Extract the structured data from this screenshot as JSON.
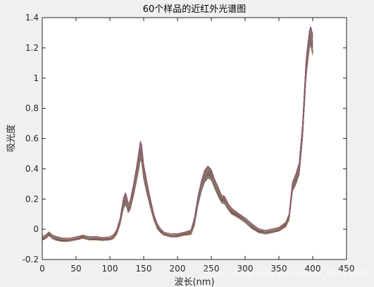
{
  "chart_data": {
    "type": "line",
    "title": "60个样品的近红外光谱图",
    "xlabel": "波长(nm)",
    "ylabel": "吸光度",
    "xlim": [
      0,
      450
    ],
    "ylim": [
      -0.2,
      1.4
    ],
    "xticks": [
      "0",
      "50",
      "100",
      "150",
      "200",
      "250",
      "300",
      "350",
      "400",
      "450"
    ],
    "yticks": [
      "-0.2",
      "0",
      "0.2",
      "0.4",
      "0.6",
      "0.8",
      "1",
      "1.2",
      "1.4"
    ],
    "grid": false,
    "series_count": 60,
    "x": [
      0,
      5,
      10,
      15,
      20,
      30,
      40,
      50,
      55,
      60,
      65,
      70,
      80,
      90,
      100,
      105,
      110,
      115,
      120,
      123,
      125,
      127,
      130,
      135,
      140,
      143,
      145,
      147,
      150,
      155,
      160,
      165,
      170,
      175,
      180,
      190,
      200,
      210,
      220,
      225,
      230,
      235,
      240,
      245,
      250,
      255,
      260,
      265,
      270,
      275,
      280,
      290,
      300,
      310,
      320,
      330,
      340,
      350,
      360,
      365,
      370,
      375,
      380,
      385,
      390,
      393,
      395,
      397,
      400
    ],
    "mean_spectrum": [
      -0.06,
      -0.05,
      -0.03,
      -0.05,
      -0.06,
      -0.07,
      -0.07,
      -0.06,
      -0.055,
      -0.05,
      -0.055,
      -0.06,
      -0.06,
      -0.065,
      -0.06,
      -0.05,
      -0.02,
      0.05,
      0.17,
      0.2,
      0.18,
      0.14,
      0.16,
      0.26,
      0.38,
      0.46,
      0.52,
      0.5,
      0.38,
      0.27,
      0.17,
      0.08,
      0.02,
      -0.01,
      -0.03,
      -0.04,
      -0.04,
      -0.03,
      -0.02,
      0.05,
      0.18,
      0.28,
      0.35,
      0.38,
      0.36,
      0.3,
      0.25,
      0.2,
      0.19,
      0.15,
      0.12,
      0.09,
      0.06,
      0.02,
      -0.01,
      -0.02,
      -0.01,
      0.0,
      0.03,
      0.08,
      0.28,
      0.33,
      0.4,
      0.65,
      1.05,
      1.18,
      1.25,
      1.28,
      1.22
    ],
    "spread": [
      0.012,
      0.012,
      0.012,
      0.012,
      0.012,
      0.01,
      0.01,
      0.01,
      0.01,
      0.01,
      0.01,
      0.01,
      0.01,
      0.01,
      0.01,
      0.012,
      0.015,
      0.02,
      0.035,
      0.04,
      0.035,
      0.03,
      0.03,
      0.04,
      0.05,
      0.06,
      0.06,
      0.06,
      0.05,
      0.04,
      0.03,
      0.02,
      0.015,
      0.012,
      0.01,
      0.01,
      0.01,
      0.01,
      0.015,
      0.025,
      0.03,
      0.035,
      0.04,
      0.04,
      0.035,
      0.03,
      0.03,
      0.025,
      0.025,
      0.02,
      0.02,
      0.015,
      0.015,
      0.015,
      0.012,
      0.012,
      0.012,
      0.012,
      0.015,
      0.02,
      0.03,
      0.035,
      0.04,
      0.05,
      0.06,
      0.06,
      0.06,
      0.06,
      0.07
    ],
    "colors": [
      "#0072BD",
      "#D95319",
      "#EDB120",
      "#7E2F8E",
      "#77AC30",
      "#4DBEEE",
      "#A2142F"
    ]
  },
  "watermark": "https://blog.csdn.net/weixin_43321959"
}
